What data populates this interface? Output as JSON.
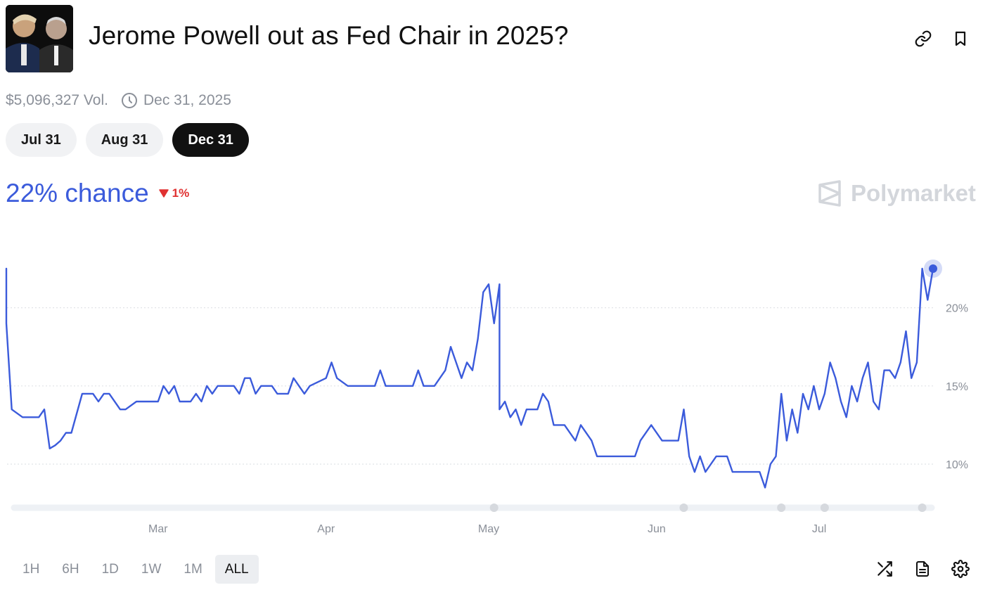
{
  "market": {
    "title": "Jerome Powell out as Fed Chair in 2025?",
    "volume": "$5,096,327 Vol.",
    "end_date": "Dec 31, 2025",
    "thumbnail_icon": "portrait-photo-icon"
  },
  "date_pills": [
    {
      "label": "Jul 31",
      "active": false
    },
    {
      "label": "Aug 31",
      "active": false
    },
    {
      "label": "Dec 31",
      "active": true
    }
  ],
  "chance": {
    "text": "22% chance",
    "delta": "1%",
    "delta_direction": "down",
    "color": "#3b5bdb",
    "delta_color": "#e03131"
  },
  "brand": {
    "name": "Polymarket"
  },
  "time_ranges": [
    {
      "label": "1H",
      "active": false
    },
    {
      "label": "6H",
      "active": false
    },
    {
      "label": "1D",
      "active": false
    },
    {
      "label": "1W",
      "active": false
    },
    {
      "label": "1M",
      "active": false
    },
    {
      "label": "ALL",
      "active": true
    }
  ],
  "icons": {
    "link": "link-icon",
    "bookmark": "bookmark-icon",
    "clock": "clock-icon",
    "shuffle": "shuffle-icon",
    "document": "document-icon",
    "settings": "gear-icon"
  },
  "chart_data": {
    "type": "line",
    "series": [
      {
        "color": "#3b5bdb",
        "points": [
          [
            "2025-02-01",
            22.5
          ],
          [
            "2025-02-01",
            19
          ],
          [
            "2025-02-02",
            13.5
          ],
          [
            "2025-02-04",
            13
          ],
          [
            "2025-02-07",
            13
          ],
          [
            "2025-02-08",
            13.5
          ],
          [
            "2025-02-09",
            11
          ],
          [
            "2025-02-10",
            11.2
          ],
          [
            "2025-02-11",
            11.5
          ],
          [
            "2025-02-12",
            12
          ],
          [
            "2025-02-13",
            12
          ],
          [
            "2025-02-15",
            14.5
          ],
          [
            "2025-02-17",
            14.5
          ],
          [
            "2025-02-18",
            14
          ],
          [
            "2025-02-19",
            14.5
          ],
          [
            "2025-02-20",
            14.5
          ],
          [
            "2025-02-22",
            13.5
          ],
          [
            "2025-02-23",
            13.5
          ],
          [
            "2025-02-25",
            14
          ],
          [
            "2025-03-01",
            14
          ],
          [
            "2025-03-02",
            15
          ],
          [
            "2025-03-03",
            14.5
          ],
          [
            "2025-03-04",
            15
          ],
          [
            "2025-03-05",
            14
          ],
          [
            "2025-03-07",
            14
          ],
          [
            "2025-03-08",
            14.5
          ],
          [
            "2025-03-09",
            14
          ],
          [
            "2025-03-10",
            15
          ],
          [
            "2025-03-11",
            14.5
          ],
          [
            "2025-03-12",
            15
          ],
          [
            "2025-03-15",
            15
          ],
          [
            "2025-03-16",
            14.5
          ],
          [
            "2025-03-17",
            15.5
          ],
          [
            "2025-03-18",
            15.5
          ],
          [
            "2025-03-19",
            14.5
          ],
          [
            "2025-03-20",
            15
          ],
          [
            "2025-03-22",
            15
          ],
          [
            "2025-03-23",
            14.5
          ],
          [
            "2025-03-25",
            14.5
          ],
          [
            "2025-03-26",
            15.5
          ],
          [
            "2025-03-27",
            15
          ],
          [
            "2025-03-28",
            14.5
          ],
          [
            "2025-03-29",
            15
          ],
          [
            "2025-04-01",
            15.5
          ],
          [
            "2025-04-02",
            16.5
          ],
          [
            "2025-04-03",
            15.5
          ],
          [
            "2025-04-05",
            15
          ],
          [
            "2025-04-10",
            15
          ],
          [
            "2025-04-11",
            16
          ],
          [
            "2025-04-12",
            15
          ],
          [
            "2025-04-17",
            15
          ],
          [
            "2025-04-18",
            16
          ],
          [
            "2025-04-19",
            15
          ],
          [
            "2025-04-21",
            15
          ],
          [
            "2025-04-22",
            15.5
          ],
          [
            "2025-04-23",
            16
          ],
          [
            "2025-04-24",
            17.5
          ],
          [
            "2025-04-25",
            16.5
          ],
          [
            "2025-04-26",
            15.5
          ],
          [
            "2025-04-27",
            16.5
          ],
          [
            "2025-04-28",
            16
          ],
          [
            "2025-04-29",
            18
          ],
          [
            "2025-04-30",
            21
          ],
          [
            "2025-05-01",
            21.5
          ],
          [
            "2025-05-02",
            19
          ],
          [
            "2025-05-03",
            21.5
          ],
          [
            "2025-05-03",
            13.5
          ],
          [
            "2025-05-04",
            14
          ],
          [
            "2025-05-05",
            13
          ],
          [
            "2025-05-06",
            13.5
          ],
          [
            "2025-05-07",
            12.5
          ],
          [
            "2025-05-08",
            13.5
          ],
          [
            "2025-05-10",
            13.5
          ],
          [
            "2025-05-11",
            14.5
          ],
          [
            "2025-05-12",
            14
          ],
          [
            "2025-05-13",
            12.5
          ],
          [
            "2025-05-15",
            12.5
          ],
          [
            "2025-05-17",
            11.5
          ],
          [
            "2025-05-18",
            12.5
          ],
          [
            "2025-05-20",
            11.5
          ],
          [
            "2025-05-21",
            10.5
          ],
          [
            "2025-05-28",
            10.5
          ],
          [
            "2025-05-29",
            11.5
          ],
          [
            "2025-05-31",
            12.5
          ],
          [
            "2025-06-02",
            11.5
          ],
          [
            "2025-06-05",
            11.5
          ],
          [
            "2025-06-06",
            13.5
          ],
          [
            "2025-06-07",
            10.5
          ],
          [
            "2025-06-08",
            9.5
          ],
          [
            "2025-06-09",
            10.5
          ],
          [
            "2025-06-10",
            9.5
          ],
          [
            "2025-06-11",
            10
          ],
          [
            "2025-06-12",
            10.5
          ],
          [
            "2025-06-14",
            10.5
          ],
          [
            "2025-06-15",
            9.5
          ],
          [
            "2025-06-20",
            9.5
          ],
          [
            "2025-06-21",
            8.5
          ],
          [
            "2025-06-22",
            10
          ],
          [
            "2025-06-23",
            10.5
          ],
          [
            "2025-06-24",
            14.5
          ],
          [
            "2025-06-25",
            11.5
          ],
          [
            "2025-06-26",
            13.5
          ],
          [
            "2025-06-27",
            12
          ],
          [
            "2025-06-28",
            14.5
          ],
          [
            "2025-06-29",
            13.5
          ],
          [
            "2025-06-30",
            15
          ],
          [
            "2025-07-01",
            13.5
          ],
          [
            "2025-07-02",
            14.5
          ],
          [
            "2025-07-03",
            16.5
          ],
          [
            "2025-07-04",
            15.5
          ],
          [
            "2025-07-05",
            14
          ],
          [
            "2025-07-06",
            13
          ],
          [
            "2025-07-07",
            15
          ],
          [
            "2025-07-08",
            14
          ],
          [
            "2025-07-09",
            15.5
          ],
          [
            "2025-07-10",
            16.5
          ],
          [
            "2025-07-11",
            14
          ],
          [
            "2025-07-12",
            13.5
          ],
          [
            "2025-07-13",
            16
          ],
          [
            "2025-07-14",
            16
          ],
          [
            "2025-07-15",
            15.5
          ],
          [
            "2025-07-16",
            16.5
          ],
          [
            "2025-07-17",
            18.5
          ],
          [
            "2025-07-18",
            15.5
          ],
          [
            "2025-07-19",
            16.5
          ],
          [
            "2025-07-20",
            22.5
          ],
          [
            "2025-07-21",
            20.5
          ],
          [
            "2025-07-22",
            22.5
          ]
        ]
      }
    ],
    "x_tick_labels": [
      "Mar",
      "Apr",
      "May",
      "Jun",
      "Jul"
    ],
    "y_tick_labels": [
      "20%",
      "15%",
      "10%"
    ],
    "y_ticks": [
      20,
      15,
      10
    ],
    "ylim": [
      7,
      24.5
    ],
    "grid": "horizontal-dotted",
    "annotation_markers": [
      "2025-05-02",
      "2025-06-06",
      "2025-06-24",
      "2025-07-02",
      "2025-07-20"
    ]
  }
}
